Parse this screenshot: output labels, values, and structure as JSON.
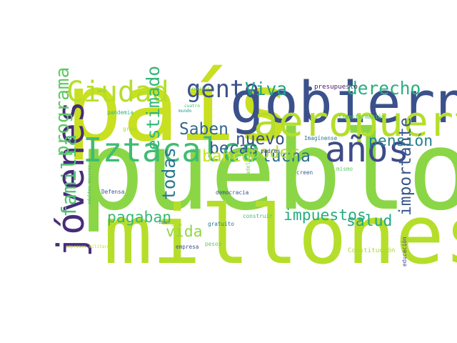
{
  "chart_data": {
    "type": "wordcloud",
    "title": "",
    "words": [
      {
        "text": "pueblo",
        "weight": 100,
        "color": "#8bd646",
        "orientation": "horizontal"
      },
      {
        "text": "país",
        "weight": 86,
        "color": "#c8e020",
        "orientation": "horizontal"
      },
      {
        "text": "millones",
        "weight": 74,
        "color": "#b5de2b",
        "orientation": "horizontal"
      },
      {
        "text": "gobierno",
        "weight": 52,
        "color": "#3b518b",
        "orientation": "horizontal"
      },
      {
        "text": "aeropuerto",
        "weight": 38,
        "color": "#b5de2b",
        "orientation": "horizontal"
      },
      {
        "text": "jóvenes",
        "weight": 34,
        "color": "#472c7a",
        "orientation": "vertical"
      },
      {
        "text": "años",
        "weight": 32,
        "color": "#3e4a89",
        "orientation": "horizontal"
      },
      {
        "text": "Iztacalco",
        "weight": 30,
        "color": "#3fbc73",
        "orientation": "horizontal"
      },
      {
        "text": "Ciudad",
        "weight": 26,
        "color": "#b5de2b",
        "orientation": "horizontal"
      },
      {
        "text": "gente",
        "weight": 22,
        "color": "#3b528b",
        "orientation": "horizontal"
      },
      {
        "text": "familia",
        "weight": 18,
        "color": "#4ac16d",
        "orientation": "vertical"
      },
      {
        "text": "programa",
        "weight": 17,
        "color": "#5ec962",
        "orientation": "vertical"
      },
      {
        "text": "estimado",
        "weight": 16,
        "color": "#35b779",
        "orientation": "vertical"
      },
      {
        "text": "derecho",
        "weight": 16,
        "color": "#29af7f",
        "orientation": "horizontal"
      },
      {
        "text": "Viva",
        "weight": 16,
        "color": "#1fa088",
        "orientation": "horizontal"
      },
      {
        "text": "todas",
        "weight": 16,
        "color": "#2a788e",
        "orientation": "vertical"
      },
      {
        "text": "importante",
        "weight": 15,
        "color": "#39568c",
        "orientation": "vertical"
      },
      {
        "text": "Saben",
        "weight": 15,
        "color": "#31688e",
        "orientation": "horizontal"
      },
      {
        "text": "becas",
        "weight": 15,
        "color": "#34618d",
        "orientation": "horizontal"
      },
      {
        "text": "banco",
        "weight": 15,
        "color": "#c8e020",
        "orientation": "horizontal"
      },
      {
        "text": "nuevo",
        "weight": 15,
        "color": "#3b518b",
        "orientation": "horizontal"
      },
      {
        "text": "lucha",
        "weight": 15,
        "color": "#2c728e",
        "orientation": "horizontal"
      },
      {
        "text": "poder",
        "weight": 15,
        "color": "#addc30",
        "orientation": "horizontal"
      },
      {
        "text": "pensión",
        "weight": 14,
        "color": "#277f8e",
        "orientation": "horizontal"
      },
      {
        "text": "vida",
        "weight": 14,
        "color": "#90d743",
        "orientation": "horizontal"
      },
      {
        "text": "pagaban",
        "weight": 14,
        "color": "#38b977",
        "orientation": "horizontal"
      },
      {
        "text": "impuestos",
        "weight": 14,
        "color": "#26ad81",
        "orientation": "horizontal"
      },
      {
        "text": "salud",
        "weight": 14,
        "color": "#22a785",
        "orientation": "horizontal"
      },
      {
        "text": "presupuesto",
        "weight": 6,
        "color": "#481a6c",
        "orientation": "horizontal"
      },
      {
        "text": "transformación",
        "weight": 5,
        "color": "#52c569",
        "orientation": "horizontal"
      },
      {
        "text": "Imagínense",
        "weight": 5,
        "color": "#2a788e",
        "orientation": "horizontal"
      },
      {
        "text": "padres",
        "weight": 5,
        "color": "#3f4889",
        "orientation": "horizontal"
      },
      {
        "text": "adelante",
        "weight": 5,
        "color": "#7ad151",
        "orientation": "vertical"
      },
      {
        "text": "mismo",
        "weight": 5,
        "color": "#5ec962",
        "orientation": "horizontal"
      },
      {
        "text": "creen",
        "weight": 5,
        "color": "#365d8d",
        "orientation": "horizontal"
      },
      {
        "text": "democracia",
        "weight": 5,
        "color": "#3b518b",
        "orientation": "horizontal"
      },
      {
        "text": "Defensa",
        "weight": 5,
        "color": "#39558c",
        "orientation": "horizontal"
      },
      {
        "text": "adultos mayores",
        "weight": 4,
        "color": "#4ac16d",
        "orientation": "vertical"
      },
      {
        "text": "pandemia",
        "weight": 5,
        "color": "#35b779",
        "orientation": "horizontal"
      },
      {
        "text": "gran",
        "weight": 5,
        "color": "#a2da37",
        "orientation": "horizontal"
      },
      {
        "text": "amor",
        "weight": 4,
        "color": "#7ad151",
        "orientation": "horizontal"
      },
      {
        "text": "recibir",
        "weight": 4,
        "color": "#5ec962",
        "orientation": "horizontal"
      },
      {
        "text": "cuatro",
        "weight": 4,
        "color": "#3fbc73",
        "orientation": "horizontal"
      },
      {
        "text": "mundo",
        "weight": 4,
        "color": "#1f968b",
        "orientation": "horizontal"
      },
      {
        "text": "iban",
        "weight": 4,
        "color": "#31688e",
        "orientation": "horizontal"
      },
      {
        "text": "paga",
        "weight": 4,
        "color": "#b5de2b",
        "orientation": "horizontal"
      },
      {
        "text": "gratuito",
        "weight": 5,
        "color": "#2a788e",
        "orientation": "horizontal"
      },
      {
        "text": "construir",
        "weight": 5,
        "color": "#3fbc73",
        "orientation": "horizontal"
      },
      {
        "text": "pesos",
        "weight": 5,
        "color": "#5ec962",
        "orientation": "horizontal"
      },
      {
        "text": "empresa",
        "weight": 5,
        "color": "#3b528b",
        "orientation": "horizontal"
      },
      {
        "text": "Constitución",
        "weight": 6,
        "color": "#a8db34",
        "orientation": "horizontal"
      },
      {
        "text": "educación",
        "weight": 5,
        "color": "#414487",
        "orientation": "vertical"
      },
      {
        "text": "empresas militares",
        "weight": 3,
        "color": "#c8e020",
        "orientation": "horizontal"
      }
    ]
  }
}
